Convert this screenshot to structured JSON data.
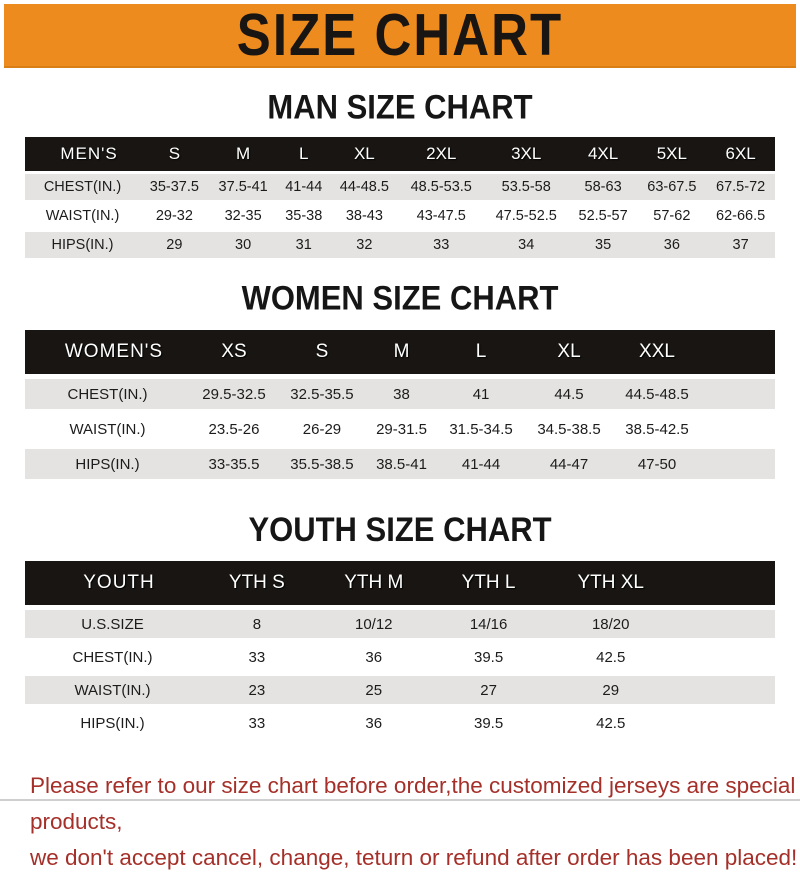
{
  "banner": {
    "title": "SIZE CHART",
    "background_color": "#EE8B1E",
    "text_color": "#181512"
  },
  "colors": {
    "table_header_bg": "#181512",
    "table_header_text": "#FFFFFF",
    "row_shade": "#E4E3E1",
    "row_plain": "#FFFFFF",
    "footer_text": "#A5302A"
  },
  "sections": [
    {
      "title": "MAN SIZE CHART",
      "header_label": "MEN'S",
      "columns": [
        "S",
        "M",
        "L",
        "XL",
        "2XL",
        "3XL",
        "4XL",
        "5XL",
        "6XL"
      ],
      "rows": [
        {
          "label": "CHEST(IN.)",
          "values": [
            "35-37.5",
            "37.5-41",
            "41-44",
            "44-48.5",
            "48.5-53.5",
            "53.5-58",
            "58-63",
            "63-67.5",
            "67.5-72"
          ]
        },
        {
          "label": "WAIST(IN.)",
          "values": [
            "29-32",
            "32-35",
            "35-38",
            "38-43",
            "43-47.5",
            "47.5-52.5",
            "52.5-57",
            "57-62",
            "62-66.5"
          ]
        },
        {
          "label": "HIPS(IN.)",
          "values": [
            "29",
            "30",
            "31",
            "32",
            "33",
            "34",
            "35",
            "36",
            "37"
          ]
        }
      ]
    },
    {
      "title": "WOMEN SIZE CHART",
      "header_label": "WOMEN'S",
      "columns": [
        "XS",
        "S",
        "M",
        "L",
        "XL",
        "XXL"
      ],
      "rows": [
        {
          "label": "CHEST(IN.)",
          "values": [
            "29.5-32.5",
            "32.5-35.5",
            "38",
            "41",
            "44.5",
            "44.5-48.5"
          ]
        },
        {
          "label": "WAIST(IN.)",
          "values": [
            "23.5-26",
            "26-29",
            "29-31.5",
            "31.5-34.5",
            "34.5-38.5",
            "38.5-42.5"
          ]
        },
        {
          "label": "HIPS(IN.)",
          "values": [
            "33-35.5",
            "35.5-38.5",
            "38.5-41",
            "41-44",
            "44-47",
            "47-50"
          ]
        }
      ]
    },
    {
      "title": "YOUTH SIZE CHART",
      "header_label": "YOUTH",
      "columns": [
        "YTH S",
        "YTH M",
        "YTH L",
        "YTH XL"
      ],
      "rows": [
        {
          "label": "U.S.SIZE",
          "values": [
            "8",
            "10/12",
            "14/16",
            "18/20"
          ]
        },
        {
          "label": "CHEST(IN.)",
          "values": [
            "33",
            "36",
            "39.5",
            "42.5"
          ]
        },
        {
          "label": "WAIST(IN.)",
          "values": [
            "23",
            "25",
            "27",
            "29"
          ]
        },
        {
          "label": "HIPS(IN.)",
          "values": [
            "33",
            "36",
            "39.5",
            "42.5"
          ]
        }
      ]
    }
  ],
  "footer": {
    "line1": "Please refer to our size chart before order,the customized jerseys are special products,",
    "line2": "we don't accept cancel, change, teturn or refund after order has been placed!"
  }
}
